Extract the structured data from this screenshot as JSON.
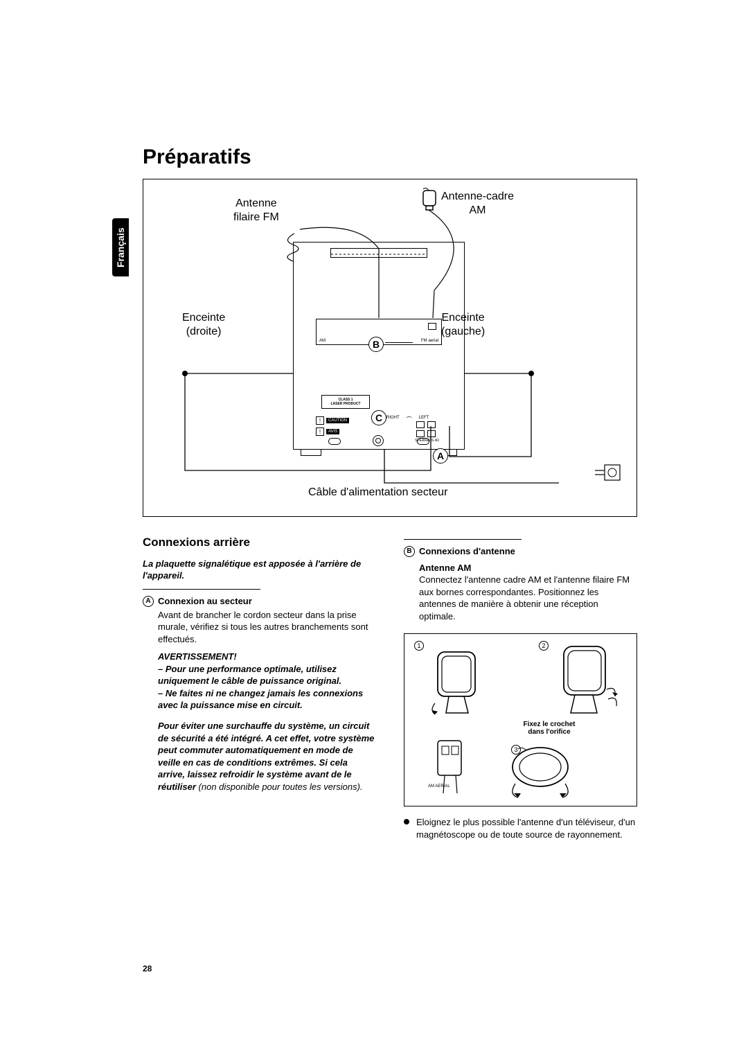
{
  "title": "Préparatifs",
  "language_tab": "Français",
  "page_number": "28",
  "diagram": {
    "fm_antenna": "Antenne\nfilaire FM",
    "am_antenna": "Antenne-cadre\nAM",
    "speaker_right": "Enceinte\n(droite)",
    "speaker_left": "Enceinte\n(gauche)",
    "power_cable": "Câble d'alimentation secteur",
    "letter_a": "A",
    "letter_b": "B",
    "letter_c": "C",
    "class1_label": "CLASS 1\nLASER PRODUCT",
    "am_label": "AM",
    "fm_aerial_label": "FM aerial",
    "speakers_label": "SPEAKERS 4Ω",
    "right_label": "RIGHT",
    "left_label": "LEFT",
    "caution": "CAUTION",
    "avis": "AVIS"
  },
  "left_col": {
    "heading": "Connexions arrière",
    "note": "La plaquette signalétique est apposée à l'arrière de l'appareil.",
    "step_a_letter": "A",
    "step_a_title": "Connexion au secteur",
    "step_a_body": "Avant de brancher le cordon secteur dans la prise murale, vérifiez si tous les autres branchements sont effectués.",
    "warn_heading": "AVERTISSEMENT!",
    "warn1": "–  Pour une performance optimale, utilisez uniquement le câble de puissance original.",
    "warn2": "–  Ne faites ni ne changez jamais les connexions avec la puissance mise en circuit.",
    "warn_para": "Pour éviter une surchauffe du système, un circuit de sécurité a été intégré. A cet effet, votre système peut commuter automatiquement en mode de veille en cas de conditions extrêmes. Si cela arrive, laissez refroidir le système avant de le réutiliser ",
    "warn_suffix": "(non disponible pour toutes les versions)."
  },
  "right_col": {
    "step_b_letter": "B",
    "step_b_title": "Connexions d'antenne",
    "antenna_am_title": "Antenne AM",
    "antenna_am_body": "Connectez l'antenne cadre AM et l'antenne filaire FM aux bornes correspondantes. Positionnez les antennes de manière à obtenir une réception optimale.",
    "fig_num1": "1",
    "fig_num2": "2",
    "fig_num3": "3",
    "fix_label": "Fixez le crochet\ndans l'orifice",
    "am_aerial": "AM AERIAL",
    "bullet": "Eloignez le plus possible l'antenne d'un téléviseur, d'un magnétoscope ou de toute source de rayonnement."
  },
  "colors": {
    "text": "#000000",
    "background": "#ffffff"
  }
}
